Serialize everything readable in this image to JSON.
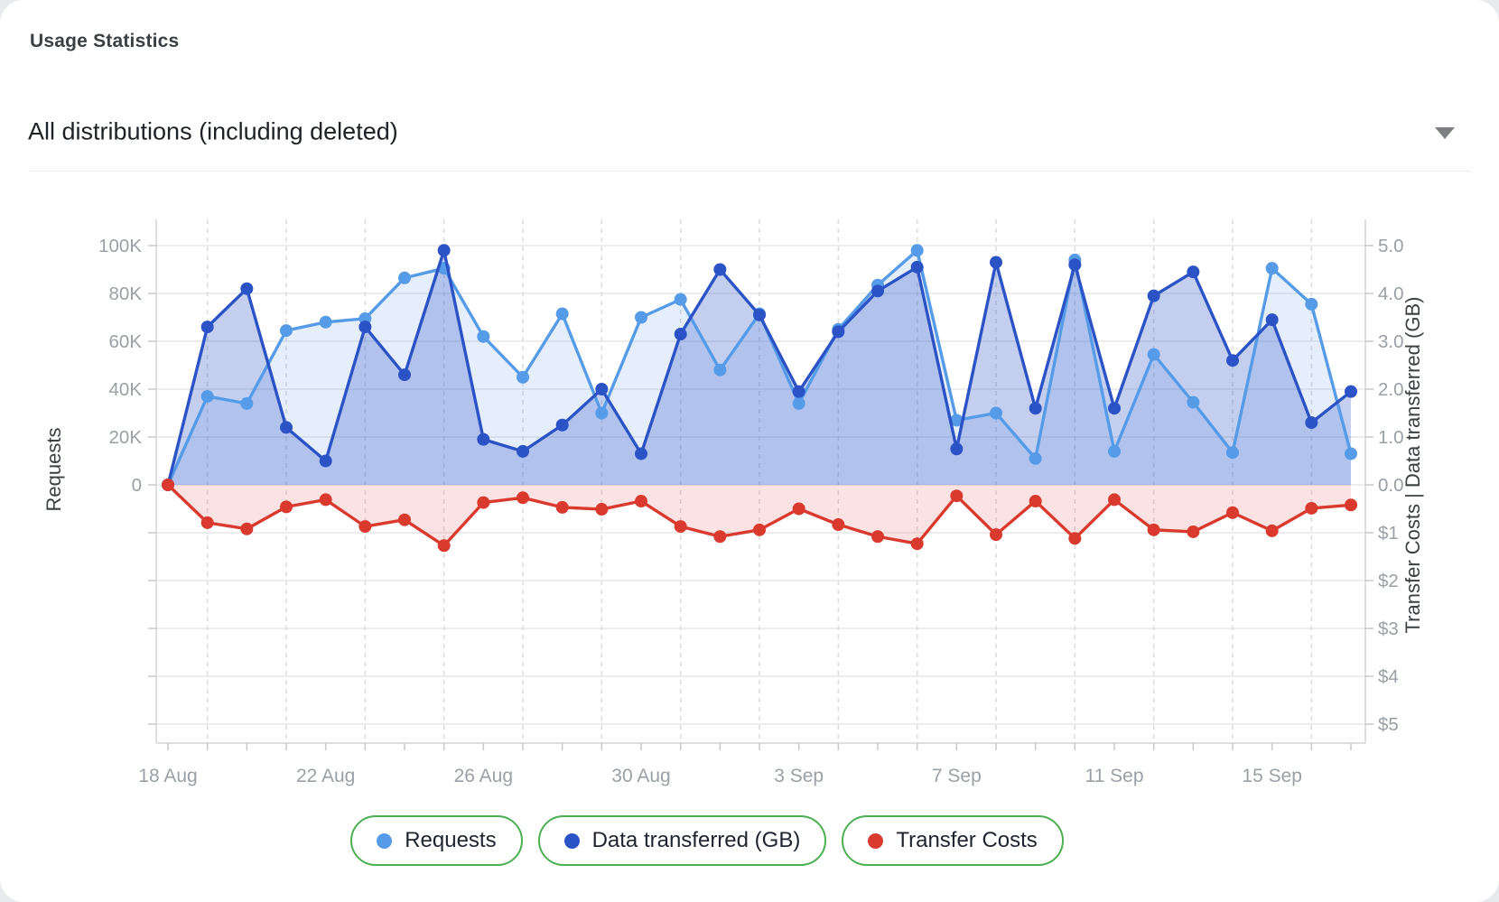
{
  "page": {
    "title": "Usage Statistics"
  },
  "filter": {
    "value": "All distributions (including deleted)"
  },
  "legend_border_color": "#4CAF50",
  "chart_data": {
    "type": "line",
    "title": "Usage Statistics",
    "grid": true,
    "legend_position": "bottom",
    "dates": [
      "18 Aug",
      "19 Aug",
      "20 Aug",
      "21 Aug",
      "22 Aug",
      "23 Aug",
      "24 Aug",
      "25 Aug",
      "26 Aug",
      "27 Aug",
      "28 Aug",
      "29 Aug",
      "30 Aug",
      "31 Aug",
      "1 Sep",
      "2 Sep",
      "3 Sep",
      "4 Sep",
      "5 Sep",
      "6 Sep",
      "7 Sep",
      "8 Sep",
      "9 Sep",
      "10 Sep",
      "11 Sep",
      "12 Sep",
      "13 Sep",
      "14 Sep",
      "15 Sep",
      "16 Sep",
      "17 Sep"
    ],
    "x_ticks": [
      {
        "label": "18 Aug",
        "day": 0
      },
      {
        "label": "22 Aug",
        "day": 4
      },
      {
        "label": "26 Aug",
        "day": 8
      },
      {
        "label": "30 Aug",
        "day": 12
      },
      {
        "label": "3 Sep",
        "day": 16
      },
      {
        "label": "7 Sep",
        "day": 20
      },
      {
        "label": "11 Sep",
        "day": 24
      },
      {
        "label": "15 Sep",
        "day": 28
      }
    ],
    "left_axis": {
      "title": "Requests",
      "range": [
        0,
        100000
      ],
      "ticks": [
        {
          "label": "100K",
          "value": 100000
        },
        {
          "label": "80K",
          "value": 80000
        },
        {
          "label": "60K",
          "value": 60000
        },
        {
          "label": "40K",
          "value": 40000
        },
        {
          "label": "20K",
          "value": 20000
        },
        {
          "label": "0",
          "value": 0
        }
      ]
    },
    "right_axis": {
      "title": "Transfer Costs | Data transferred (GB)",
      "gb_range": [
        0,
        5
      ],
      "cost_range": [
        0,
        5
      ],
      "ticks": [
        {
          "label": "5.0",
          "value": 5
        },
        {
          "label": "4.0",
          "value": 4
        },
        {
          "label": "3.0",
          "value": 3
        },
        {
          "label": "2.0",
          "value": 2
        },
        {
          "label": "1.0",
          "value": 1
        },
        {
          "label": "0.0",
          "value": 0
        },
        {
          "label": "$1",
          "value": -1
        },
        {
          "label": "$2",
          "value": -2
        },
        {
          "label": "$3",
          "value": -3
        },
        {
          "label": "$4",
          "value": -4
        },
        {
          "label": "$5",
          "value": -5
        }
      ]
    },
    "series": [
      {
        "name": "Requests",
        "axis": "left",
        "color": "#569BE8",
        "fill": "rgba(91,156,233,0.16)",
        "values": [
          0,
          37000,
          34000,
          64500,
          68000,
          69500,
          86500,
          90500,
          62000,
          45000,
          71500,
          30000,
          70000,
          77500,
          48000,
          71500,
          34000,
          65000,
          83500,
          98000,
          27000,
          30000,
          11000,
          94000,
          14000,
          54500,
          34500,
          13500,
          90500,
          75500,
          13000
        ]
      },
      {
        "name": "Data transferred (GB)",
        "axis": "right",
        "color": "#2B53C6",
        "fill": "rgba(43,83,199,0.28)",
        "values": [
          0,
          3.3,
          4.1,
          1.2,
          0.5,
          3.3,
          2.3,
          4.9,
          0.95,
          0.7,
          1.25,
          2.0,
          0.65,
          3.15,
          4.5,
          3.55,
          1.95,
          3.2,
          4.05,
          4.55,
          0.75,
          4.65,
          1.6,
          4.6,
          1.6,
          3.95,
          4.45,
          2.6,
          3.45,
          1.3,
          1.95
        ]
      },
      {
        "name": "Transfer Costs",
        "axis": "cost",
        "color": "#DA3A2E",
        "fill": "rgba(219,59,48,0.14)",
        "values": [
          0,
          0.79,
          0.92,
          0.46,
          0.31,
          0.87,
          0.73,
          1.27,
          0.37,
          0.27,
          0.47,
          0.51,
          0.34,
          0.87,
          1.08,
          0.94,
          0.5,
          0.83,
          1.08,
          1.23,
          0.23,
          1.04,
          0.34,
          1.12,
          0.31,
          0.94,
          0.98,
          0.58,
          0.96,
          0.49,
          0.42
        ]
      }
    ]
  }
}
